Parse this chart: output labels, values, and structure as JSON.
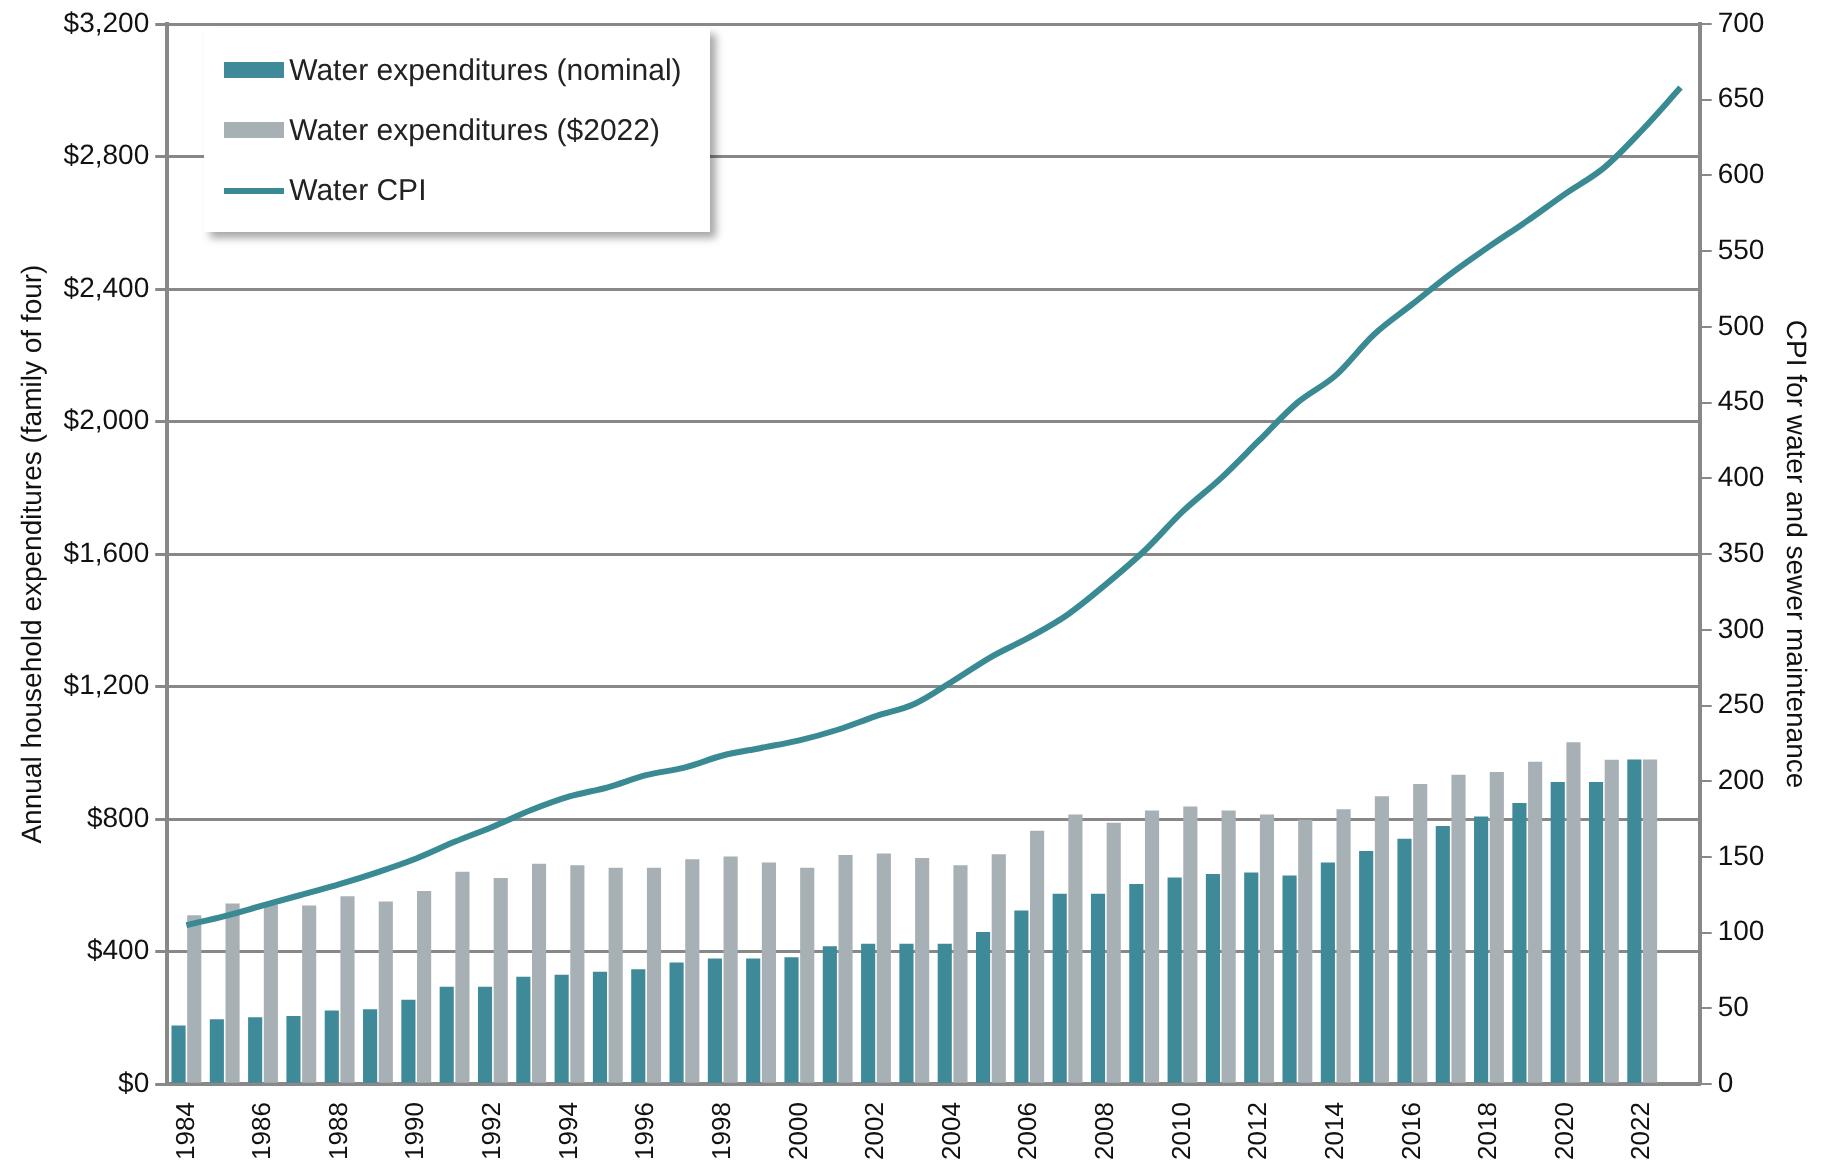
{
  "chart_data": {
    "type": "bar",
    "categories": [
      "1984",
      null,
      "1986",
      null,
      "1988",
      null,
      "1990",
      null,
      "1992",
      null,
      "1994",
      null,
      "1996",
      null,
      "1998",
      null,
      "2000",
      null,
      "2002",
      null,
      "2004",
      null,
      "2006",
      null,
      "2008",
      null,
      "2010",
      null,
      "2012",
      null,
      "2014",
      null,
      "2016",
      null,
      "2018",
      null,
      "2020",
      null,
      "2022",
      null
    ],
    "ylabel": "Annual household expenditures (family of four)",
    "y2label": "CPI for water and sewer maintenance",
    "ylim": [
      0,
      3200
    ],
    "yticks": [
      {
        "value": 0,
        "label": "$0"
      },
      {
        "value": 400,
        "label": "$400"
      },
      {
        "value": 800,
        "label": "$800"
      },
      {
        "value": 1200,
        "label": "$1,200"
      },
      {
        "value": 1600,
        "label": "$1,600"
      },
      {
        "value": 2000,
        "label": "$2,000"
      },
      {
        "value": 2400,
        "label": "$2,400"
      },
      {
        "value": 2800,
        "label": "$2,800"
      },
      {
        "value": 3200,
        "label": "$3,200"
      }
    ],
    "y2lim": [
      0,
      700
    ],
    "y2ticks": [
      0,
      50,
      100,
      150,
      200,
      250,
      300,
      350,
      400,
      450,
      500,
      550,
      600,
      650,
      700
    ],
    "grid": "y",
    "legend": "top left",
    "series": [
      {
        "name": "Water expenditures (nominal)",
        "color": "#3f8a99",
        "values": [
          177,
          196,
          202,
          206,
          222,
          226,
          255,
          294,
          294,
          324,
          330,
          339,
          347,
          367,
          379,
          379,
          383,
          416,
          424,
          424,
          424,
          459,
          524,
          575,
          575,
          604,
          624,
          634,
          639,
          630,
          669,
          704,
          741,
          779,
          808,
          849,
          912,
          912,
          980,
          null
        ]
      },
      {
        "name": "Water expenditures ($2022)",
        "color": "#a7b0b4",
        "values": [
          510,
          545,
          541,
          539,
          567,
          551,
          583,
          641,
          622,
          665,
          661,
          653,
          653,
          679,
          687,
          669,
          653,
          692,
          696,
          683,
          661,
          694,
          765,
          814,
          789,
          826,
          838,
          826,
          814,
          798,
          830,
          869,
          906,
          934,
          942,
          973,
          1032,
          979,
          980,
          null
        ]
      },
      {
        "name": "Water CPI",
        "type": "line",
        "axis": "y2",
        "color": "#3a8a94",
        "values": [
          105,
          111,
          118,
          125,
          132,
          140,
          149,
          160,
          170,
          181,
          190,
          196,
          204,
          209,
          217,
          222,
          227,
          234,
          243,
          251,
          266,
          282,
          295,
          310,
          330,
          352,
          378,
          400,
          425,
          450,
          468,
          495,
          515,
          535,
          553,
          570,
          588,
          605,
          630,
          658
        ]
      }
    ]
  }
}
